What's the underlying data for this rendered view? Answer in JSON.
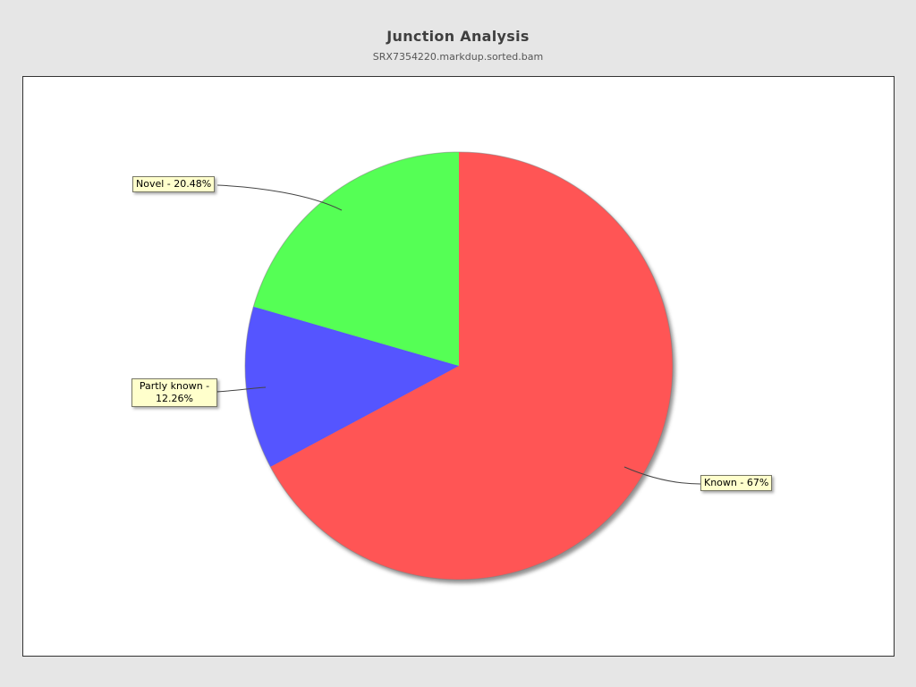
{
  "header": {
    "title": "Junction Analysis",
    "subtitle": "SRX7354220.markdup.sorted.bam"
  },
  "chart_data": {
    "type": "pie",
    "title": "Junction Analysis",
    "subtitle": "SRX7354220.markdup.sorted.bam",
    "start_angle_deg": 0,
    "direction": "clockwise",
    "legend": false,
    "background_color": "#e6e6e6",
    "plot_background_color": "#ffffff",
    "label_box_color": "#ffffcc",
    "slices": [
      {
        "name": "Known",
        "value": 67,
        "label": "Known - 67%",
        "color": "#ff5555"
      },
      {
        "name": "Partly known",
        "value": 12.26,
        "label": "Partly known - 12.26%",
        "color": "#5555ff"
      },
      {
        "name": "Novel",
        "value": 20.48,
        "label": "Novel - 20.48%",
        "color": "#55ff55"
      }
    ]
  }
}
